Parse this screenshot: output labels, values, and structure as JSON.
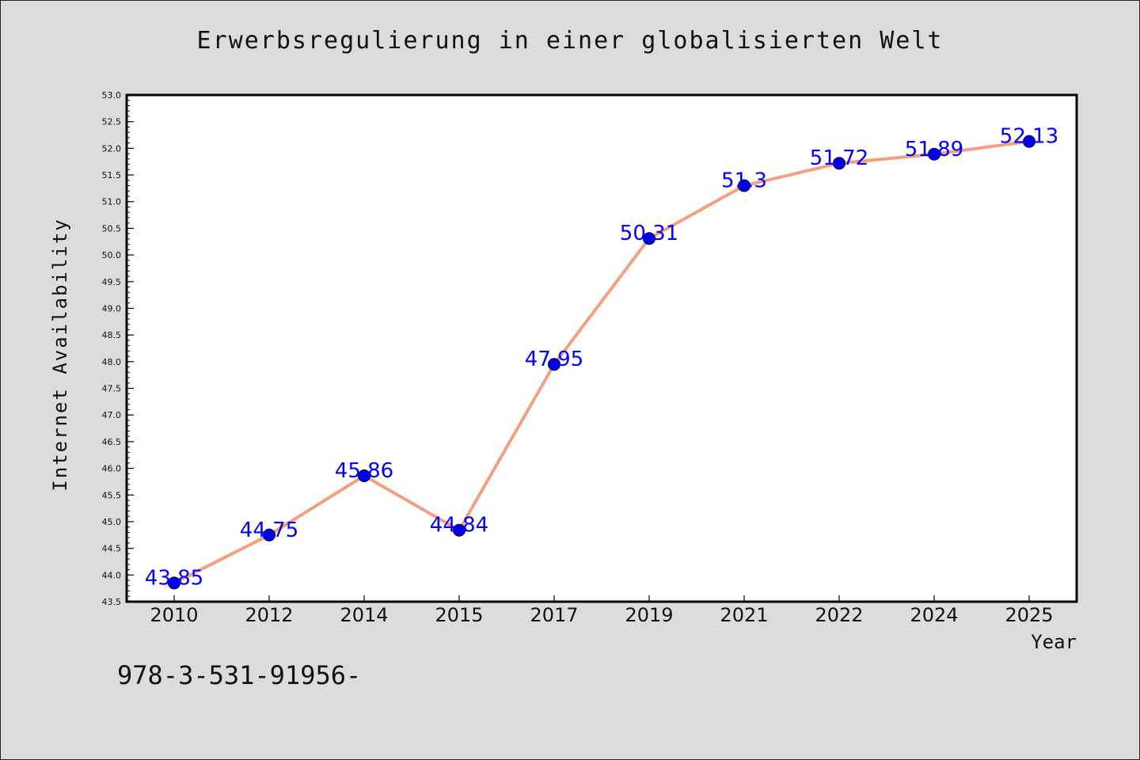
{
  "chart_data": {
    "type": "line",
    "title": "Erwerbsregulierung in einer globalisierten Welt",
    "xlabel": "Year",
    "ylabel": "Internet Availability",
    "categories": [
      "2010",
      "2012",
      "2014",
      "2015",
      "2017",
      "2019",
      "2021",
      "2022",
      "2024",
      "2025"
    ],
    "series": [
      {
        "values": [
          43.85,
          44.75,
          45.86,
          44.84,
          47.95,
          50.31,
          51.3,
          51.72,
          51.89,
          52.13
        ],
        "data_labels": [
          "43.85",
          "44.75",
          "45.86",
          "44.84",
          "47.95",
          "50.31",
          "51.3",
          "51.72",
          "51.89",
          "52.13"
        ]
      }
    ],
    "ylim": [
      43.5,
      53.0
    ],
    "y_ticks": [
      "43.5",
      "44.0",
      "44.5",
      "45.0",
      "45.5",
      "46.0",
      "46.5",
      "47.0",
      "47.5",
      "48.0",
      "48.5",
      "49.0",
      "49.5",
      "50.0",
      "50.5",
      "51.0",
      "51.5",
      "52.0",
      "52.5",
      "53.0"
    ],
    "grid": false,
    "legend": "none",
    "colors": {
      "line": "#f4a07f",
      "marker": "#0000ee",
      "data_label": "#0000ff",
      "plot_bg": "#ffffff",
      "page_bg": "#dcdcdc"
    }
  },
  "footnote": "978-3-531-91956-"
}
